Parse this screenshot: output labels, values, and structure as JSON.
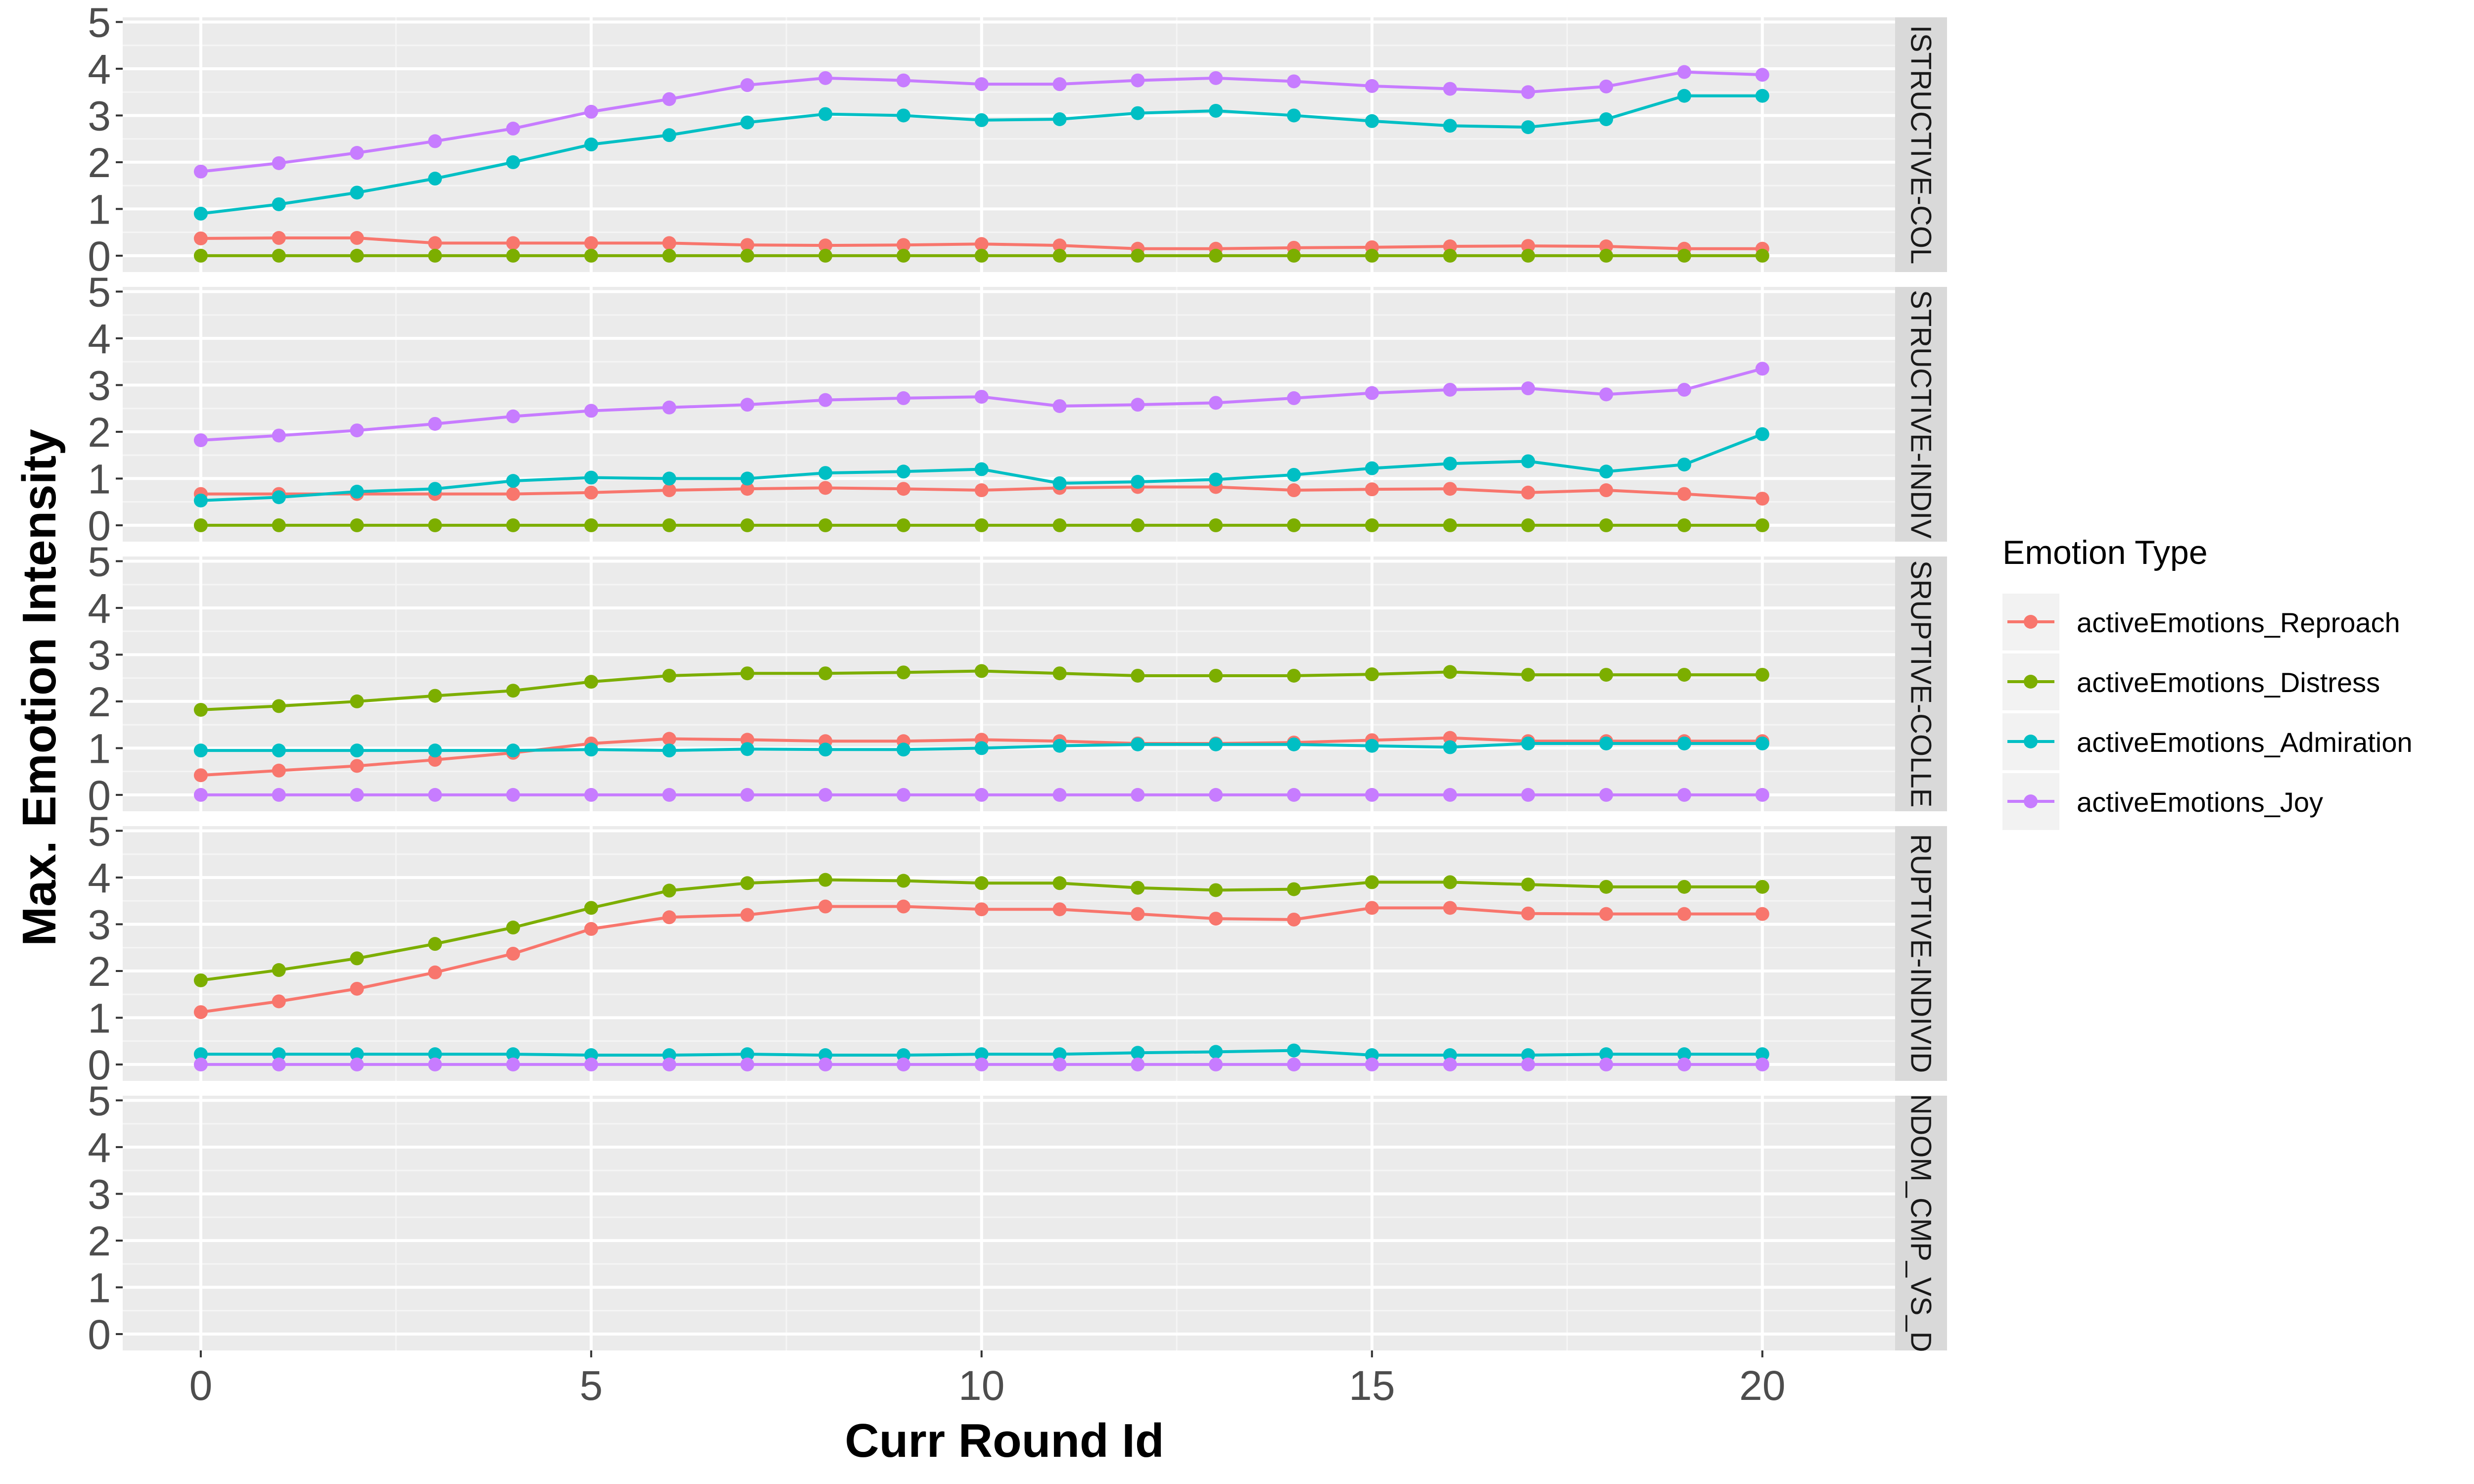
{
  "chart_data": {
    "type": "line",
    "xlabel": "Curr Round Id",
    "ylabel": "Max. Emotion Intensity",
    "xlim": [
      -1,
      21.7
    ],
    "ylim": [
      -0.35,
      5.1
    ],
    "x_ticks": [
      0,
      5,
      10,
      15,
      20
    ],
    "y_ticks": [
      0,
      1,
      2,
      3,
      4,
      5
    ],
    "grid": true,
    "legend": {
      "title": "Emotion Type",
      "position": "right",
      "entries": [
        {
          "name": "activeEmotions_Reproach",
          "color": "#F8766D"
        },
        {
          "name": "activeEmotions_Distress",
          "color": "#7CAE00"
        },
        {
          "name": "activeEmotions_Admiration",
          "color": "#00BFC4"
        },
        {
          "name": "activeEmotions_Joy",
          "color": "#C77CFF"
        }
      ]
    },
    "x": [
      0,
      1,
      2,
      3,
      4,
      5,
      6,
      7,
      8,
      9,
      10,
      11,
      12,
      13,
      14,
      15,
      16,
      17,
      18,
      19,
      20
    ],
    "panels": [
      {
        "strip_label": "ISTRUCTIVE-COL",
        "series": [
          {
            "name": "activeEmotions_Reproach",
            "values": [
              0.37,
              0.38,
              0.38,
              0.27,
              0.27,
              0.27,
              0.27,
              0.23,
              0.22,
              0.23,
              0.25,
              0.22,
              0.15,
              0.15,
              0.17,
              0.18,
              0.2,
              0.21,
              0.2,
              0.15,
              0.15
            ]
          },
          {
            "name": "activeEmotions_Distress",
            "values": [
              0,
              0,
              0,
              0,
              0,
              0,
              0,
              0,
              0,
              0,
              0,
              0,
              0,
              0,
              0,
              0,
              0,
              0,
              0,
              0,
              0
            ]
          },
          {
            "name": "activeEmotions_Admiration",
            "values": [
              0.9,
              1.1,
              1.35,
              1.65,
              2.0,
              2.38,
              2.58,
              2.85,
              3.03,
              3.0,
              2.9,
              2.92,
              3.05,
              3.1,
              3.0,
              2.88,
              2.78,
              2.75,
              2.92,
              3.42,
              3.42
            ]
          },
          {
            "name": "activeEmotions_Joy",
            "values": [
              1.8,
              1.98,
              2.2,
              2.45,
              2.72,
              3.08,
              3.35,
              3.65,
              3.8,
              3.75,
              3.67,
              3.67,
              3.75,
              3.8,
              3.73,
              3.63,
              3.57,
              3.5,
              3.62,
              3.93,
              3.87
            ]
          }
        ]
      },
      {
        "strip_label": "STRUCTIVE-INDIV",
        "series": [
          {
            "name": "activeEmotions_Reproach",
            "values": [
              0.67,
              0.67,
              0.67,
              0.67,
              0.67,
              0.7,
              0.75,
              0.78,
              0.8,
              0.78,
              0.75,
              0.8,
              0.82,
              0.82,
              0.75,
              0.77,
              0.78,
              0.7,
              0.75,
              0.67,
              0.57
            ]
          },
          {
            "name": "activeEmotions_Distress",
            "values": [
              0,
              0,
              0,
              0,
              0,
              0,
              0,
              0,
              0,
              0,
              0,
              0,
              0,
              0,
              0,
              0,
              0,
              0,
              0,
              0,
              0
            ]
          },
          {
            "name": "activeEmotions_Admiration",
            "values": [
              0.53,
              0.6,
              0.72,
              0.78,
              0.95,
              1.02,
              1.0,
              1.0,
              1.12,
              1.15,
              1.2,
              0.9,
              0.93,
              0.98,
              1.08,
              1.22,
              1.32,
              1.37,
              1.15,
              1.3,
              1.95
            ]
          },
          {
            "name": "activeEmotions_Joy",
            "values": [
              1.82,
              1.92,
              2.03,
              2.17,
              2.33,
              2.45,
              2.52,
              2.58,
              2.68,
              2.72,
              2.75,
              2.55,
              2.58,
              2.62,
              2.72,
              2.83,
              2.9,
              2.93,
              2.8,
              2.9,
              3.35
            ]
          }
        ]
      },
      {
        "strip_label": "SRUPTIVE-COLLE",
        "series": [
          {
            "name": "activeEmotions_Reproach",
            "values": [
              0.42,
              0.52,
              0.62,
              0.75,
              0.9,
              1.1,
              1.2,
              1.18,
              1.15,
              1.15,
              1.18,
              1.15,
              1.1,
              1.1,
              1.12,
              1.17,
              1.22,
              1.15,
              1.15,
              1.15,
              1.15
            ]
          },
          {
            "name": "activeEmotions_Distress",
            "values": [
              1.82,
              1.9,
              2.0,
              2.12,
              2.23,
              2.42,
              2.55,
              2.6,
              2.6,
              2.62,
              2.65,
              2.6,
              2.55,
              2.55,
              2.55,
              2.58,
              2.63,
              2.57,
              2.57,
              2.57,
              2.57
            ]
          },
          {
            "name": "activeEmotions_Admiration",
            "values": [
              0.95,
              0.95,
              0.95,
              0.95,
              0.95,
              0.97,
              0.95,
              0.98,
              0.97,
              0.97,
              1.0,
              1.05,
              1.08,
              1.08,
              1.08,
              1.05,
              1.02,
              1.1,
              1.1,
              1.1,
              1.1
            ]
          },
          {
            "name": "activeEmotions_Joy",
            "values": [
              0,
              0,
              0,
              0,
              0,
              0,
              0,
              0,
              0,
              0,
              0,
              0,
              0,
              0,
              0,
              0,
              0,
              0,
              0,
              0,
              0
            ]
          }
        ]
      },
      {
        "strip_label": "RUPTIVE-INDIVID",
        "series": [
          {
            "name": "activeEmotions_Reproach",
            "values": [
              1.12,
              1.35,
              1.62,
              1.97,
              2.37,
              2.9,
              3.15,
              3.2,
              3.38,
              3.38,
              3.32,
              3.32,
              3.22,
              3.12,
              3.1,
              3.35,
              3.35,
              3.23,
              3.22,
              3.22,
              3.22
            ]
          },
          {
            "name": "activeEmotions_Distress",
            "values": [
              1.8,
              2.02,
              2.27,
              2.58,
              2.93,
              3.35,
              3.72,
              3.88,
              3.95,
              3.93,
              3.88,
              3.88,
              3.78,
              3.73,
              3.75,
              3.9,
              3.9,
              3.85,
              3.8,
              3.8,
              3.8
            ]
          },
          {
            "name": "activeEmotions_Admiration",
            "values": [
              0.22,
              0.22,
              0.22,
              0.22,
              0.22,
              0.2,
              0.2,
              0.22,
              0.2,
              0.2,
              0.22,
              0.22,
              0.25,
              0.27,
              0.3,
              0.2,
              0.2,
              0.2,
              0.22,
              0.22,
              0.22
            ]
          },
          {
            "name": "activeEmotions_Joy",
            "values": [
              0,
              0,
              0,
              0,
              0,
              0,
              0,
              0,
              0,
              0,
              0,
              0,
              0,
              0,
              0,
              0,
              0,
              0,
              0,
              0,
              0
            ]
          }
        ]
      },
      {
        "strip_label": "NDOM_CMP_VS_D",
        "series": []
      }
    ]
  }
}
